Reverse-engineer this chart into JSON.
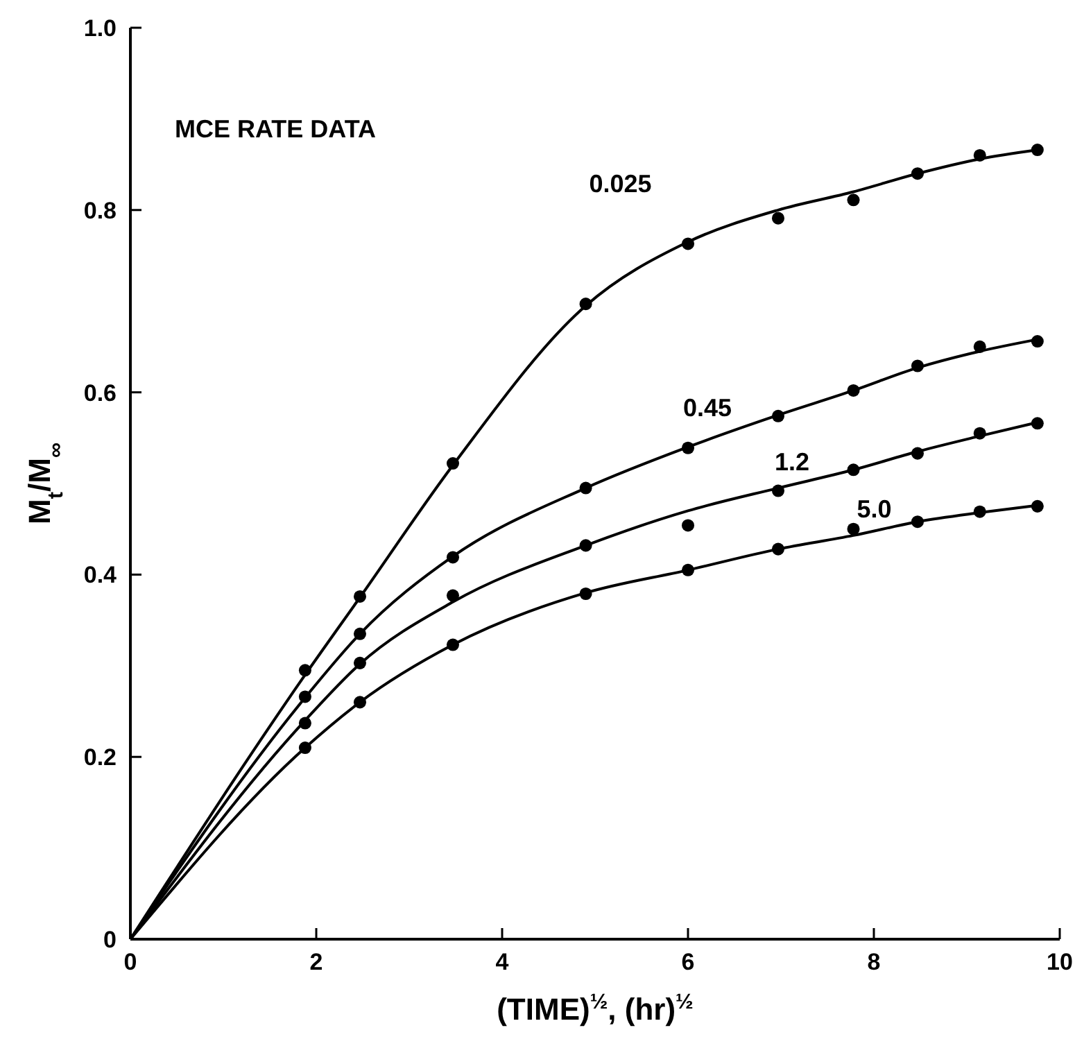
{
  "chart_data": {
    "type": "scatter",
    "xlabel": "(TIME)$^{½}$, (hr)$^{½}$",
    "ylabel": "M$_{t}$/M$_{∞}$",
    "xlim": [
      0,
      10
    ],
    "xticks": [
      0,
      2,
      4,
      6,
      8,
      10
    ],
    "ylim": [
      0,
      1
    ],
    "yticks": [
      0,
      0.2,
      0.4,
      0.6,
      0.8,
      {
        "value": 1,
        "label": "1.0"
      }
    ],
    "grid": false,
    "marker": "circle",
    "line_style": "solid",
    "annotations": [
      "MCE RATE DATA"
    ],
    "series": [
      {
        "color": "#000000",
        "x": [
          1.88,
          2.47,
          3.47,
          4.9,
          6.0,
          6.97,
          7.78,
          8.47,
          9.14,
          9.76
        ],
        "values": [
          0.295,
          0.376,
          0.522,
          0.697,
          0.763,
          0.791,
          0.811,
          0.84,
          0.86,
          0.866
        ]
      },
      {
        "color": "#000000",
        "x": [
          1.88,
          2.47,
          3.47,
          4.9,
          6.0,
          6.97,
          7.78,
          8.47,
          9.14,
          9.76
        ],
        "values": [
          0.266,
          0.335,
          0.419,
          0.495,
          0.539,
          0.574,
          0.602,
          0.629,
          0.65,
          0.656
        ]
      },
      {
        "color": "#000000",
        "x": [
          1.88,
          2.47,
          3.47,
          4.9,
          6.0,
          6.97,
          7.78,
          8.47,
          9.14,
          9.76
        ],
        "values": [
          0.237,
          0.303,
          0.377,
          0.432,
          0.454,
          0.492,
          0.515,
          0.533,
          0.555,
          0.566
        ]
      },
      {
        "color": "#000000",
        "x": [
          1.88,
          2.47,
          3.47,
          4.9,
          6.0,
          6.97,
          7.78,
          8.47,
          9.14,
          9.76
        ],
        "values": [
          0.21,
          0.26,
          0.323,
          0.379,
          0.405,
          0.428,
          0.45,
          0.458,
          0.469,
          0.475
        ]
      },
      {
        "type": "line",
        "name": "0.025",
        "marker": "none",
        "color": "#000000",
        "x": [
          0,
          1.88,
          2.47,
          3.47,
          4.9,
          6.0,
          6.97,
          7.78,
          8.47,
          9.14,
          9.76
        ],
        "values": [
          0,
          0.29,
          0.375,
          0.52,
          0.695,
          0.765,
          0.8,
          0.82,
          0.84,
          0.856,
          0.866
        ]
      },
      {
        "type": "line",
        "name": "0.45",
        "marker": "none",
        "color": "#000000",
        "x": [
          0,
          1.88,
          2.47,
          3.47,
          4.9,
          6.0,
          6.97,
          7.78,
          8.47,
          9.14,
          9.76
        ],
        "values": [
          0,
          0.265,
          0.335,
          0.42,
          0.495,
          0.54,
          0.575,
          0.602,
          0.627,
          0.645,
          0.658
        ]
      },
      {
        "type": "line",
        "name": "1.2",
        "marker": "none",
        "color": "#000000",
        "x": [
          0,
          1.88,
          2.47,
          3.47,
          4.9,
          6.0,
          6.97,
          7.78,
          8.47,
          9.14,
          9.76
        ],
        "values": [
          0,
          0.24,
          0.302,
          0.37,
          0.432,
          0.47,
          0.495,
          0.515,
          0.535,
          0.552,
          0.567
        ]
      },
      {
        "type": "line",
        "name": "5.0",
        "marker": "none",
        "color": "#000000",
        "x": [
          0,
          1.88,
          2.47,
          3.47,
          4.9,
          6.0,
          6.97,
          7.78,
          8.47,
          9.14,
          9.76
        ],
        "values": [
          0,
          0.21,
          0.26,
          0.323,
          0.38,
          0.405,
          0.428,
          0.443,
          0.458,
          0.468,
          0.476
        ]
      }
    ]
  }
}
